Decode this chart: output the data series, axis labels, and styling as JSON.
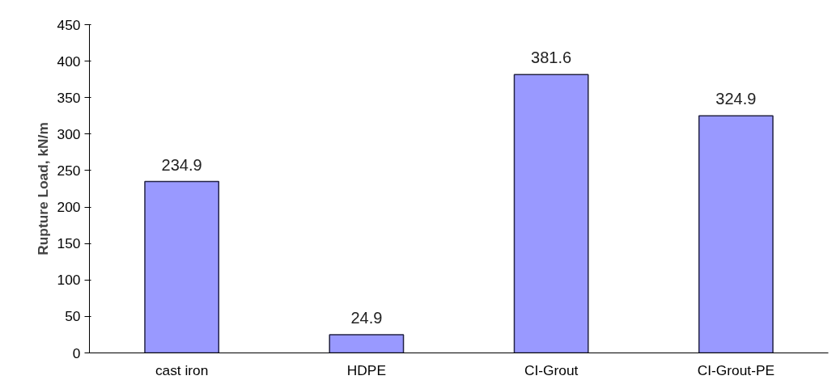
{
  "chart_data": {
    "type": "bar",
    "ylabel": "Rupture Load, kN/m",
    "categories": [
      "cast iron",
      "HDPE",
      "CI-Grout",
      "CI-Grout-PE"
    ],
    "values": [
      234.9,
      24.9,
      381.6,
      324.9
    ],
    "color": "#9999ff",
    "ylim": [
      0,
      450
    ],
    "yticks": [
      0,
      50,
      100,
      150,
      200,
      250,
      300,
      350,
      400,
      450
    ],
    "data_labels": true,
    "grid": false
  }
}
